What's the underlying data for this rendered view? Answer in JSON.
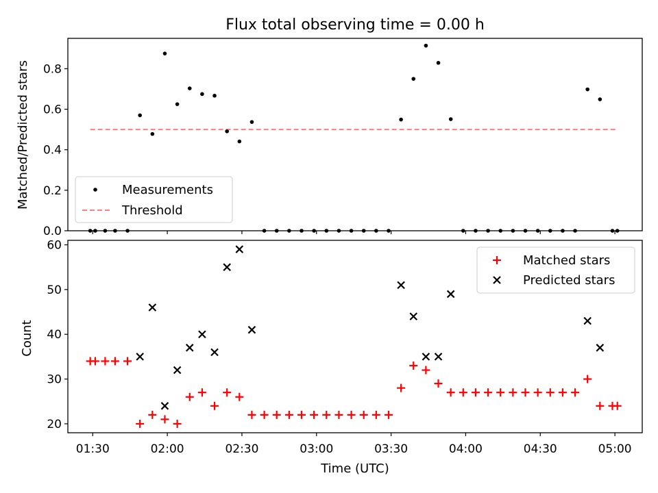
{
  "title": "Flux total observing time = 0.00 h",
  "chart_data": [
    {
      "type": "scatter",
      "ylabel": "Matched/Predicted stars",
      "xlabel": "",
      "ylim": [
        0,
        0.95
      ],
      "yticks": [
        0.0,
        0.2,
        0.4,
        0.6,
        0.8
      ],
      "ytick_labels": [
        "0.0",
        "0.2",
        "0.4",
        "0.6",
        "0.8"
      ],
      "x_range_minutes": [
        80,
        311
      ],
      "legend": "lower-left",
      "legend_entries": [
        "Measurements",
        "Threshold"
      ],
      "threshold": {
        "name": "Threshold",
        "value": 0.5,
        "x_start": 89,
        "x_end": 301,
        "color": "#ff7f7f",
        "style": "dashed"
      },
      "measurements": {
        "name": "Measurements",
        "color": "#000000",
        "x": [
          89,
          91,
          95,
          99,
          104,
          109,
          114,
          119,
          124,
          129,
          134,
          139,
          144,
          149,
          154,
          159,
          164,
          169,
          174,
          179,
          184,
          189,
          194,
          199,
          204,
          209,
          214,
          219,
          224,
          229,
          234,
          239,
          244,
          249,
          254,
          259,
          264,
          269,
          274,
          279,
          284,
          289,
          294,
          299,
          301
        ],
        "y": [
          0.0,
          0.0,
          0.0,
          0.0,
          0.0,
          0.57,
          0.478,
          0.875,
          0.625,
          0.703,
          0.675,
          0.667,
          0.491,
          0.441,
          0.537,
          0.0,
          0.0,
          0.0,
          0.0,
          0.0,
          0.0,
          0.0,
          0.0,
          0.0,
          0.0,
          0.0,
          0.549,
          0.75,
          0.914,
          0.829,
          0.551,
          0.0,
          0.0,
          0.0,
          0.0,
          0.0,
          0.0,
          0.0,
          0.0,
          0.0,
          0.0,
          0.698,
          0.649,
          0.0,
          0.0
        ]
      }
    },
    {
      "type": "scatter",
      "ylabel": "Count",
      "xlabel": "Time (UTC)",
      "ylim": [
        18,
        61
      ],
      "yticks": [
        20,
        30,
        40,
        50,
        60
      ],
      "ytick_labels": [
        "20",
        "30",
        "40",
        "50",
        "60"
      ],
      "x_range_minutes": [
        80,
        311
      ],
      "xticks_minutes": [
        90,
        120,
        150,
        180,
        210,
        240,
        270,
        300
      ],
      "xtick_labels": [
        "01:30",
        "02:00",
        "02:30",
        "03:00",
        "03:30",
        "04:00",
        "04:30",
        "05:00"
      ],
      "legend": "upper-right",
      "legend_entries": [
        "Matched stars",
        "Predicted stars"
      ],
      "series": [
        {
          "name": "Matched stars",
          "marker": "plus",
          "color": "#ff0000",
          "x": [
            89,
            91,
            95,
            99,
            104,
            109,
            114,
            119,
            124,
            129,
            134,
            139,
            144,
            149,
            154,
            159,
            164,
            169,
            174,
            179,
            184,
            189,
            194,
            199,
            204,
            209,
            214,
            219,
            224,
            229,
            234,
            239,
            244,
            249,
            254,
            259,
            264,
            269,
            274,
            279,
            284,
            289,
            294,
            299,
            301
          ],
          "y": [
            34,
            34,
            34,
            34,
            34,
            20,
            22,
            21,
            20,
            26,
            27,
            24,
            27,
            26,
            22,
            22,
            22,
            22,
            22,
            22,
            22,
            22,
            22,
            22,
            22,
            22,
            28,
            33,
            32,
            29,
            27,
            27,
            27,
            27,
            27,
            27,
            27,
            27,
            27,
            27,
            27,
            30,
            24,
            24,
            24
          ]
        },
        {
          "name": "Predicted stars",
          "marker": "x",
          "color": "#000000",
          "x": [
            109,
            114,
            119,
            124,
            129,
            134,
            139,
            144,
            149,
            154,
            214,
            219,
            224,
            229,
            234,
            289,
            294
          ],
          "y": [
            35,
            46,
            24,
            32,
            37,
            40,
            36,
            55,
            59,
            41,
            51,
            44,
            35,
            35,
            49,
            43,
            37
          ]
        }
      ]
    }
  ]
}
